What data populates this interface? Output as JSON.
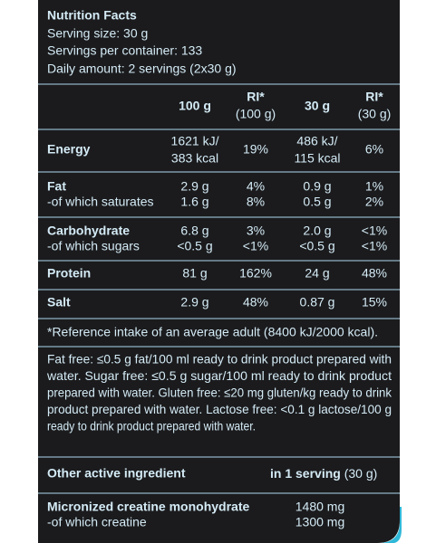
{
  "header": {
    "title": "Nutrition Facts",
    "serving_size": "Serving size: 30 g",
    "servings_per_container": "Servings per container: 133",
    "daily_amount": "Daily amount: 2 servings (2x30 g)"
  },
  "table": {
    "columns": [
      [
        "100 g"
      ],
      [
        "RI*",
        "(100 g)"
      ],
      [
        "30 g"
      ],
      [
        "RI*",
        "(30 g)"
      ]
    ],
    "rows": [
      [
        "Energy",
        [
          "1621 kJ/",
          "383 kcal"
        ],
        "19%",
        [
          "486 kJ/",
          "115 kcal"
        ],
        "6%"
      ],
      [
        "Fat",
        "2.9 g",
        "4%",
        "0.9 g",
        "1%"
      ],
      [
        "-of which saturates",
        "1.6 g",
        "8%",
        "0.5 g",
        "2%"
      ],
      [
        "Carbohydrate",
        "6.8 g",
        "3%",
        "2.0 g",
        "<1%"
      ],
      [
        "-of which sugars",
        "<0.5 g",
        "<1%",
        "<0.5 g",
        "<1%"
      ],
      [
        "Protein",
        "81 g",
        "162%",
        "24 g",
        "48%"
      ],
      [
        "Salt",
        "2.9 g",
        "48%",
        "0.87 g",
        "15%"
      ]
    ]
  },
  "footnote": "*Reference intake of an average adult (8400 kJ/2000 kcal).",
  "claims": [
    "Fat free: ≤0.5 g fat/100 ml ready to drink product prepared with",
    "water. Sugar free: ≤0.5 g sugar/100 ml ready to drink product",
    "prepared with water. Gluten free: ≤20 mg gluten/kg ready to drink",
    "product prepared with water. Lactose free: <0.1 g lactose/100 g",
    "ready to drink product prepared with water."
  ],
  "active": {
    "heading": "Other active ingredient",
    "serving_label": "in 1 serving",
    "serving_amount": " (30 g)",
    "rows": [
      [
        "Micronized creatine monohydrate",
        "1480 mg"
      ],
      [
        "-of which creatine",
        "1300 mg"
      ]
    ]
  }
}
